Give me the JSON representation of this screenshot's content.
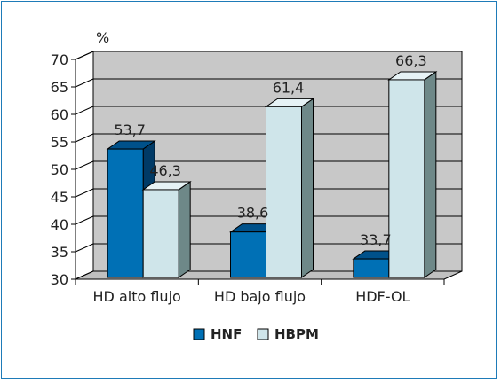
{
  "chart_data": {
    "type": "bar",
    "title": "",
    "xlabel": "",
    "ylabel": "%",
    "ylim": [
      30,
      70
    ],
    "yticks": [
      30,
      35,
      40,
      45,
      50,
      55,
      60,
      65,
      70
    ],
    "grid": true,
    "legend_position": "bottom",
    "categories": [
      "HD alto flujo",
      "HD bajo flujo",
      "HDF-OL"
    ],
    "series": [
      {
        "name": "HNF",
        "values": [
          53.7,
          38.6,
          33.7
        ],
        "labels": [
          "53,7",
          "38,6",
          "33,7"
        ],
        "color": "#0070b5"
      },
      {
        "name": "HBPM",
        "values": [
          46.3,
          61.4,
          66.3
        ],
        "labels": [
          "46,3",
          "61,4",
          "66,3"
        ],
        "color": "#cfe5ea"
      }
    ],
    "colors": {
      "frame": "#1e7bb8",
      "wall": "#c8c8c8",
      "floor": "#c0c0c0",
      "grid": "#000000",
      "hnf_front": "#0070b5",
      "hnf_top": "#00518a",
      "hnf_side": "#003a66",
      "hbpm_front": "#cfe5ea",
      "hbpm_top": "#e6f2f5",
      "hbpm_side": "#6e8888"
    }
  }
}
